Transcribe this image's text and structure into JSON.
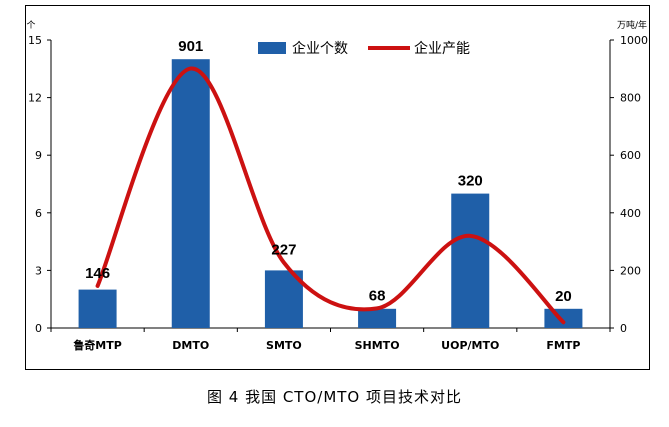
{
  "caption": "图 4  我国 CTO/MTO 项目技术对比",
  "chart_data": {
    "type": "bar+line",
    "categories": [
      "鲁奇MTP",
      "DMTO",
      "SMTO",
      "SHMTO",
      "UOP/MTO",
      "FMTP"
    ],
    "bar_series": {
      "name": "企业个数",
      "values": [
        2,
        14,
        3,
        1,
        7,
        1
      ],
      "color": "#1f5fa8",
      "axis": "left"
    },
    "line_series": {
      "name": "企业产能",
      "values": [
        146,
        901,
        227,
        68,
        320,
        20
      ],
      "color": "#cc1111",
      "axis": "right"
    },
    "data_labels": [
      "146",
      "901",
      "227",
      "68",
      "320",
      "20"
    ],
    "left_axis": {
      "unit": "个",
      "ylim": [
        0,
        15
      ],
      "ticks": [
        "0",
        "3",
        "6",
        "9",
        "12",
        "15"
      ]
    },
    "right_axis": {
      "unit": "万吨/年",
      "ylim": [
        0,
        1000
      ],
      "ticks": [
        "0",
        "200",
        "400",
        "600",
        "800",
        "1000"
      ]
    },
    "grid": false,
    "legend_position": "top-center"
  }
}
